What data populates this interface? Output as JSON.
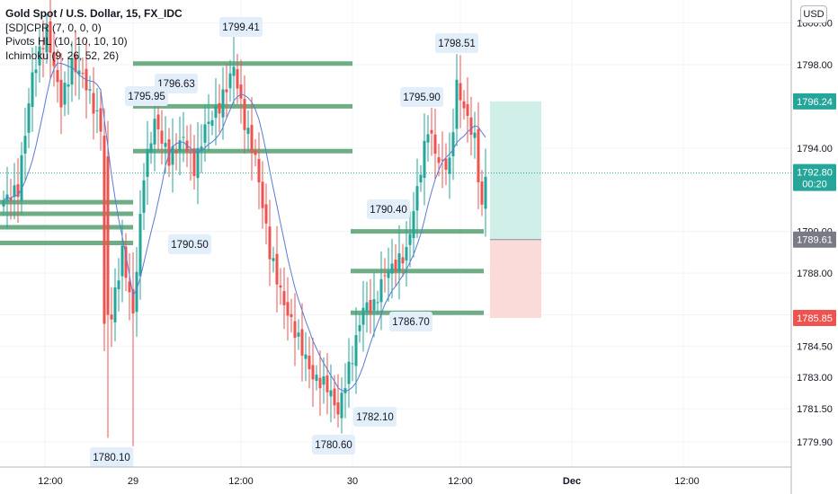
{
  "legend": {
    "title": "Gold Spot / U.S. Dollar, 15, FX_IDC",
    "indicators": [
      "[SD]CPR (7, 0, 0, 0)",
      "Pivots HL (10, 10, 10, 10)",
      "Ichimoku (9, 26, 52, 26)"
    ]
  },
  "currency_button": "USD",
  "colors": {
    "up": "#26a69a",
    "down": "#ef5350",
    "level_line": "#6fae84",
    "ichimoku_line": "#5b7bd5",
    "profit_zone": "#d1efe9",
    "loss_zone": "#fbdada",
    "label_bg": "#e3eefb",
    "axis_text": "#131722"
  },
  "chart_data": {
    "type": "candlestick",
    "y_axis": {
      "ticks": [
        1779.9,
        1781.5,
        1783.0,
        1784.5,
        1786.0,
        1788.0,
        1790.0,
        1794.0,
        1798.0,
        1800.0
      ],
      "tick_labels": [
        "1779.90",
        "1781.50",
        "1783.00",
        "1784.50",
        "",
        "1788.00",
        "1790.00",
        "1794.00",
        "1798.00",
        "1800.00"
      ],
      "range": [
        1778.7,
        1801.1
      ]
    },
    "x_axis": {
      "tick_labels": [
        "12:00",
        "29",
        "12:00",
        "30",
        "12:00",
        "Dec",
        "12:00"
      ]
    },
    "price_badges": [
      {
        "value": "1796.24",
        "kind": "target"
      },
      {
        "value": "1792.80",
        "sub": "00:20",
        "kind": "current"
      },
      {
        "value": "1789.61",
        "kind": "entry"
      },
      {
        "value": "1785.85",
        "kind": "stop"
      }
    ],
    "pivot_labels": [
      "1799.41",
      "1796.63",
      "1795.95",
      "1790.50",
      "1798.51",
      "1795.90",
      "1790.40",
      "1786.70",
      "1782.10",
      "1780.60",
      "1780.10"
    ],
    "anchors": [
      [
        0,
        1791.5
      ],
      [
        4,
        1792.0
      ],
      [
        8,
        1797.5
      ],
      [
        12,
        1799.6
      ],
      [
        16,
        1796.2
      ],
      [
        19,
        1798.0
      ],
      [
        22,
        1797.5
      ],
      [
        27,
        1795.0
      ],
      [
        28,
        1785.5
      ],
      [
        30,
        1786.0
      ],
      [
        33,
        1789.0
      ],
      [
        36,
        1786.0
      ],
      [
        39,
        1792.8
      ],
      [
        42,
        1795.3
      ],
      [
        46,
        1793.5
      ],
      [
        50,
        1794.5
      ],
      [
        53,
        1793.0
      ],
      [
        56,
        1795.0
      ],
      [
        60,
        1796.0
      ],
      [
        64,
        1797.9
      ],
      [
        67,
        1795.2
      ],
      [
        70,
        1793.5
      ],
      [
        74,
        1789.0
      ],
      [
        78,
        1786.5
      ],
      [
        82,
        1784.8
      ],
      [
        86,
        1783.0
      ],
      [
        90,
        1782.6
      ],
      [
        93,
        1781.3
      ],
      [
        95,
        1782.8
      ],
      [
        97,
        1784.0
      ],
      [
        100,
        1786.4
      ],
      [
        103,
        1786.4
      ],
      [
        106,
        1788.0
      ],
      [
        109,
        1788.4
      ],
      [
        112,
        1789.0
      ],
      [
        115,
        1792.0
      ],
      [
        118,
        1795.0
      ],
      [
        121,
        1793.3
      ],
      [
        124,
        1793.2
      ],
      [
        126,
        1797.0
      ],
      [
        128,
        1795.9
      ],
      [
        131,
        1794.4
      ],
      [
        133,
        1791.0
      ],
      [
        134,
        1792.8
      ]
    ]
  }
}
